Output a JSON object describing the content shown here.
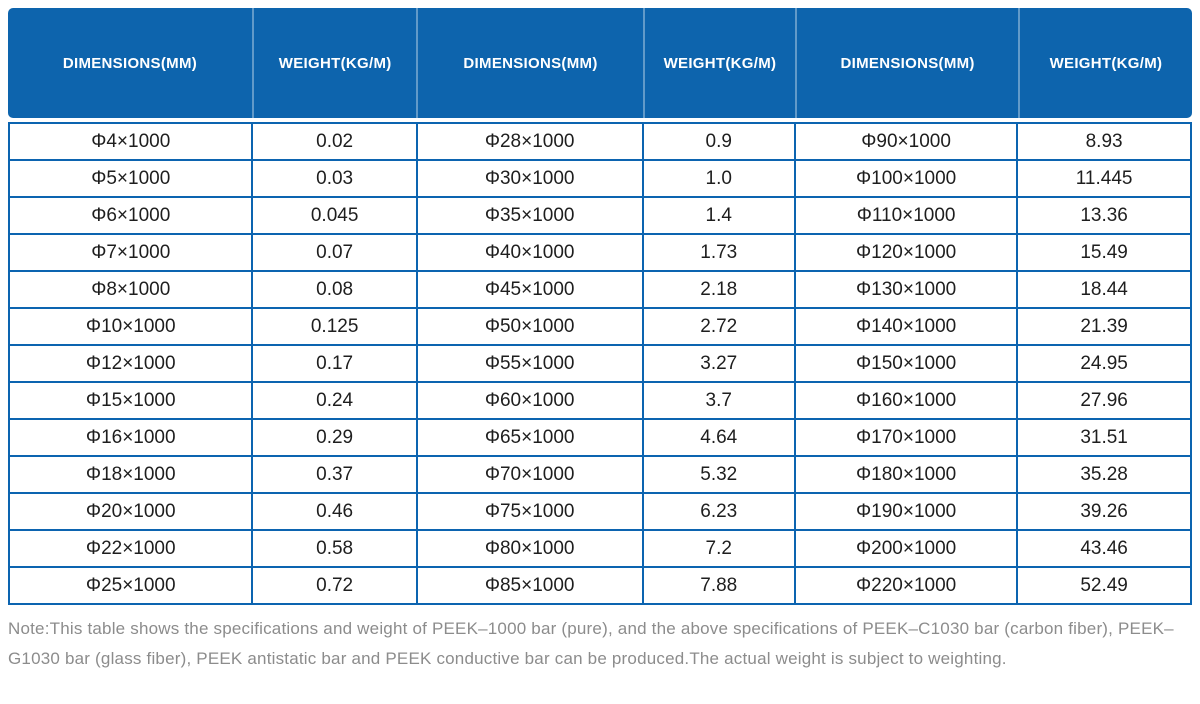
{
  "colors": {
    "header_bg": "#0D64AD",
    "grid_border": "#0C64B0",
    "header_separator": "rgba(255,255,255,0.35)",
    "body_text": "#1E1E1E",
    "note_text": "#8C8C8C"
  },
  "table": {
    "columns": [
      {
        "label": "DIMENSIONS(MM)"
      },
      {
        "label": "WEIGHT(KG/M)"
      },
      {
        "label": "DIMENSIONS(MM)"
      },
      {
        "label": "WEIGHT(KG/M)"
      },
      {
        "label": "DIMENSIONS(MM)"
      },
      {
        "label": "WEIGHT(KG/M)"
      }
    ],
    "rows": [
      [
        "Φ4×1000",
        "0.02",
        "Φ28×1000",
        "0.9",
        "Φ90×1000",
        "8.93"
      ],
      [
        "Φ5×1000",
        "0.03",
        "Φ30×1000",
        "1.0",
        "Φ100×1000",
        "11.445"
      ],
      [
        "Φ6×1000",
        "0.045",
        "Φ35×1000",
        "1.4",
        "Φ110×1000",
        "13.36"
      ],
      [
        "Φ7×1000",
        "0.07",
        "Φ40×1000",
        "1.73",
        "Φ120×1000",
        "15.49"
      ],
      [
        "Φ8×1000",
        "0.08",
        "Φ45×1000",
        "2.18",
        "Φ130×1000",
        "18.44"
      ],
      [
        "Φ10×1000",
        "0.125",
        "Φ50×1000",
        "2.72",
        "Φ140×1000",
        "21.39"
      ],
      [
        "Φ12×1000",
        "0.17",
        "Φ55×1000",
        "3.27",
        "Φ150×1000",
        "24.95"
      ],
      [
        "Φ15×1000",
        "0.24",
        "Φ60×1000",
        "3.7",
        "Φ160×1000",
        "27.96"
      ],
      [
        "Φ16×1000",
        "0.29",
        "Φ65×1000",
        "4.64",
        "Φ170×1000",
        "31.51"
      ],
      [
        "Φ18×1000",
        "0.37",
        "Φ70×1000",
        "5.32",
        "Φ180×1000",
        "35.28"
      ],
      [
        "Φ20×1000",
        "0.46",
        "Φ75×1000",
        "6.23",
        "Φ190×1000",
        "39.26"
      ],
      [
        "Φ22×1000",
        "0.58",
        "Φ80×1000",
        "7.2",
        "Φ200×1000",
        "43.46"
      ],
      [
        "Φ25×1000",
        "0.72",
        "Φ85×1000",
        "7.88",
        "Φ220×1000",
        "52.49"
      ]
    ]
  },
  "note": "Note:This table shows the specifications and weight of PEEK–1000 bar (pure), and the above specifications of PEEK–C1030 bar (carbon fiber), PEEK–G1030 bar (glass fiber), PEEK antistatic bar and PEEK conductive bar can be produced.The actual weight is subject to weighting."
}
